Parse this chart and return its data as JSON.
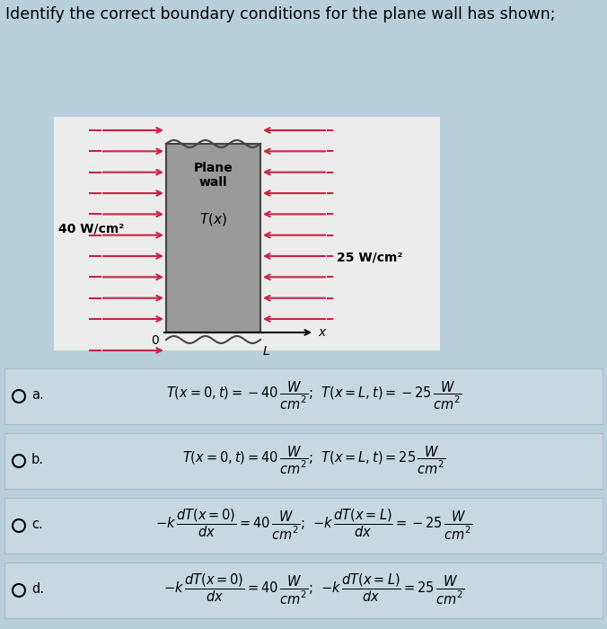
{
  "title": "Identify the correct boundary conditions for the plane wall has shown;",
  "title_fontsize": 12.5,
  "bg_color": "#b8d0dc",
  "diagram_box_color": "#e8e8e8",
  "wall_color": "#999999",
  "wall_edge_color": "#444444",
  "arrow_color": "#cc2244",
  "left_label": "40 W/cm²",
  "right_label": "25 W/cm²",
  "option_box_color": "#c8d8e0",
  "option_box_edge": "#aabbc8",
  "options": [
    {
      "label": "a.",
      "text": "$T(x = 0, t) = -40\\,\\dfrac{W}{cm^2}$;  $T(x = L, t) = -25\\,\\dfrac{W}{cm^2}$"
    },
    {
      "label": "b.",
      "text": "$T(x = 0, t) = 40\\,\\dfrac{W}{cm^2}$;  $T(x = L, t) = 25\\,\\dfrac{W}{cm^2}$"
    },
    {
      "label": "c.",
      "text": "$-k\\,\\dfrac{dT(x{=}0)}{dx} = 40\\,\\dfrac{W}{cm^2}$;  $-k\\,\\dfrac{dT(x{=}L)}{dx} = -25\\,\\dfrac{W}{cm^2}$"
    },
    {
      "label": "d.",
      "text": "$-k\\,\\dfrac{dT(x{=}0)}{dx} = 40\\,\\dfrac{W}{cm^2}$;  $-k\\,\\dfrac{dT(x{=}L)}{dx} = 25\\,\\dfrac{W}{cm^2}$"
    }
  ]
}
